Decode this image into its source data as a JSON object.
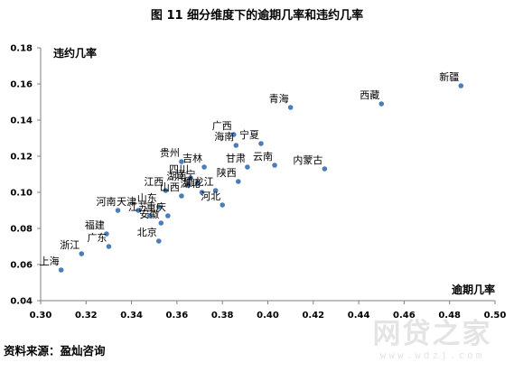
{
  "chart_data": {
    "type": "scatter",
    "title": "图 11  细分维度下的逾期几率和违约几率",
    "xlabel": "逾期几率",
    "ylabel": "违约几率",
    "xlim": [
      0.3,
      0.5
    ],
    "ylim": [
      0.04,
      0.18
    ],
    "x_ticks": [
      "0.30",
      "0.32",
      "0.34",
      "0.36",
      "0.38",
      "0.40",
      "0.42",
      "0.44",
      "0.46",
      "0.48",
      "0.50"
    ],
    "y_ticks": [
      "0.04",
      "0.06",
      "0.08",
      "0.10",
      "0.12",
      "0.14",
      "0.16",
      "0.18"
    ],
    "grid": false,
    "marker_color": "#4a7ebb",
    "points": [
      {
        "label": "新疆",
        "x": 0.485,
        "y": 0.159
      },
      {
        "label": "西藏",
        "x": 0.45,
        "y": 0.149
      },
      {
        "label": "青海",
        "x": 0.41,
        "y": 0.147
      },
      {
        "label": "内蒙古",
        "x": 0.425,
        "y": 0.113
      },
      {
        "label": "广西",
        "x": 0.385,
        "y": 0.132
      },
      {
        "label": "宁夏",
        "x": 0.397,
        "y": 0.127
      },
      {
        "label": "海南",
        "x": 0.386,
        "y": 0.126
      },
      {
        "label": "云南",
        "x": 0.403,
        "y": 0.115
      },
      {
        "label": "甘肃",
        "x": 0.391,
        "y": 0.114
      },
      {
        "label": "陕西",
        "x": 0.387,
        "y": 0.106
      },
      {
        "label": "吉林",
        "x": 0.372,
        "y": 0.114
      },
      {
        "label": "贵州",
        "x": 0.362,
        "y": 0.117
      },
      {
        "label": "四川",
        "x": 0.366,
        "y": 0.108
      },
      {
        "label": "辽宁",
        "x": 0.369,
        "y": 0.105
      },
      {
        "label": "湖南",
        "x": 0.365,
        "y": 0.104
      },
      {
        "label": "黑龙江",
        "x": 0.377,
        "y": 0.101
      },
      {
        "label": "湖北",
        "x": 0.371,
        "y": 0.1
      },
      {
        "label": "江西",
        "x": 0.355,
        "y": 0.101
      },
      {
        "label": "山西",
        "x": 0.362,
        "y": 0.098
      },
      {
        "label": "河北",
        "x": 0.38,
        "y": 0.093
      },
      {
        "label": "天津",
        "x": 0.343,
        "y": 0.09
      },
      {
        "label": "山东",
        "x": 0.352,
        "y": 0.092
      },
      {
        "label": "河南",
        "x": 0.334,
        "y": 0.09
      },
      {
        "label": "重庆",
        "x": 0.356,
        "y": 0.087
      },
      {
        "label": "江苏",
        "x": 0.348,
        "y": 0.087
      },
      {
        "label": "安徽",
        "x": 0.353,
        "y": 0.083
      },
      {
        "label": "福建",
        "x": 0.329,
        "y": 0.077
      },
      {
        "label": "北京",
        "x": 0.352,
        "y": 0.073
      },
      {
        "label": "浙江",
        "x": 0.318,
        "y": 0.066
      },
      {
        "label": "广东",
        "x": 0.33,
        "y": 0.07
      },
      {
        "label": "上海",
        "x": 0.309,
        "y": 0.057
      }
    ]
  },
  "source_note": "资料来源：盈灿咨询",
  "watermark": {
    "main": "网贷之家",
    "sub": "www.wdzj.com"
  }
}
